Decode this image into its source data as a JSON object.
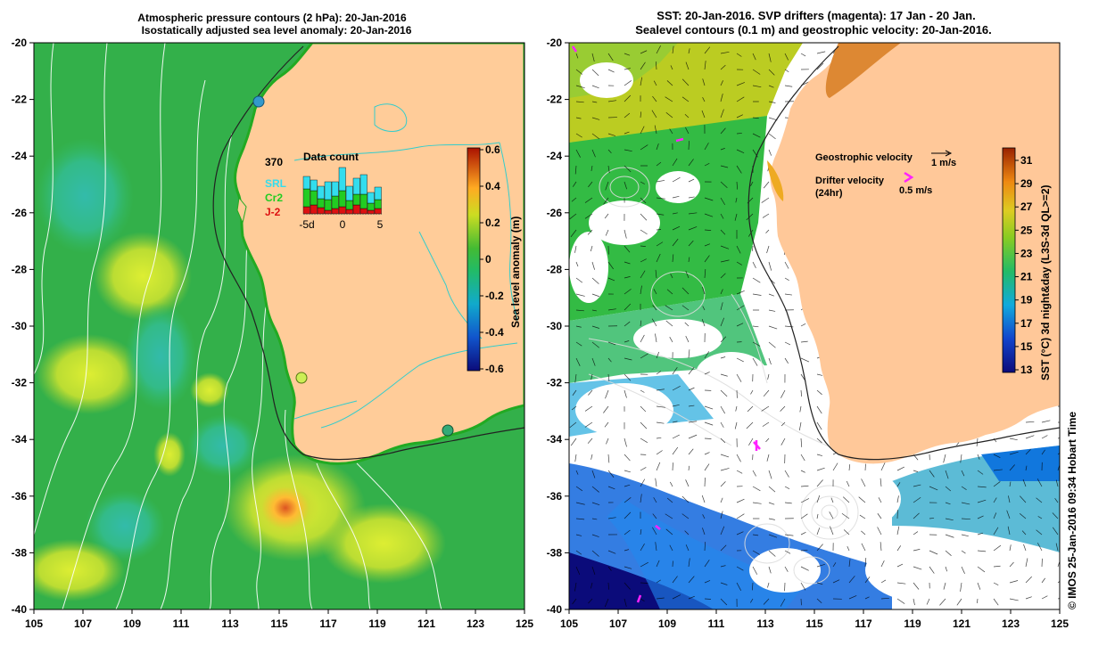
{
  "left_panel": {
    "title_line1": "Atmospheric pressure contours (2 hPa): 20-Jan-2016",
    "title_line2": "Isostatically adjusted sea level anomaly: 20-Jan-2016",
    "x_ticks": [
      "105",
      "107",
      "109",
      "111",
      "113",
      "115",
      "117",
      "119",
      "121",
      "123",
      "125"
    ],
    "y_ticks": [
      "-20",
      "-22",
      "-24",
      "-26",
      "-28",
      "-30",
      "-32",
      "-34",
      "-36",
      "-38",
      "-40"
    ],
    "colorbar": {
      "label": "Sea level anomaly (m)",
      "ticks": [
        "0.6",
        "0.4",
        "0.2",
        "0",
        "-0.2",
        "-0.4",
        "-0.6"
      ]
    },
    "inset": {
      "title": "Data count",
      "count": "370",
      "legend": [
        {
          "label": "SRL",
          "color": "#33ddee"
        },
        {
          "label": "Cr2",
          "color": "#22cc22"
        },
        {
          "label": "J-2",
          "color": "#dd1111"
        }
      ],
      "x_ticks": [
        "-5d",
        "0",
        "5"
      ]
    }
  },
  "right_panel": {
    "title_line1": "SST: 20-Jan-2016. SVP drifters (magenta): 17 Jan - 20 Jan.",
    "title_line2": "Sealevel contours (0.1 m) and geostrophic velocity: 20-Jan-2016.",
    "x_ticks": [
      "105",
      "107",
      "109",
      "111",
      "113",
      "115",
      "117",
      "119",
      "121",
      "123",
      "125"
    ],
    "y_ticks": [
      "-20",
      "-22",
      "-24",
      "-26",
      "-28",
      "-30",
      "-32",
      "-34",
      "-36",
      "-38",
      "-40"
    ],
    "legend_geo_label": "Geostrophic velocity",
    "legend_geo_speed": "1 m/s",
    "legend_drifter_label": "Drifter velocity",
    "legend_drifter_sub": "(24hr)",
    "legend_drifter_speed": "0.5 m/s",
    "colorbar": {
      "label": "SST (°C) 3d night&day (L3S-3d QL>=2)",
      "ticks": [
        "31",
        "29",
        "27",
        "25",
        "23",
        "21",
        "19",
        "17",
        "15",
        "13"
      ]
    }
  },
  "credit": "© IMOS 25-Jan-2016 09:34 Hobart Time"
}
